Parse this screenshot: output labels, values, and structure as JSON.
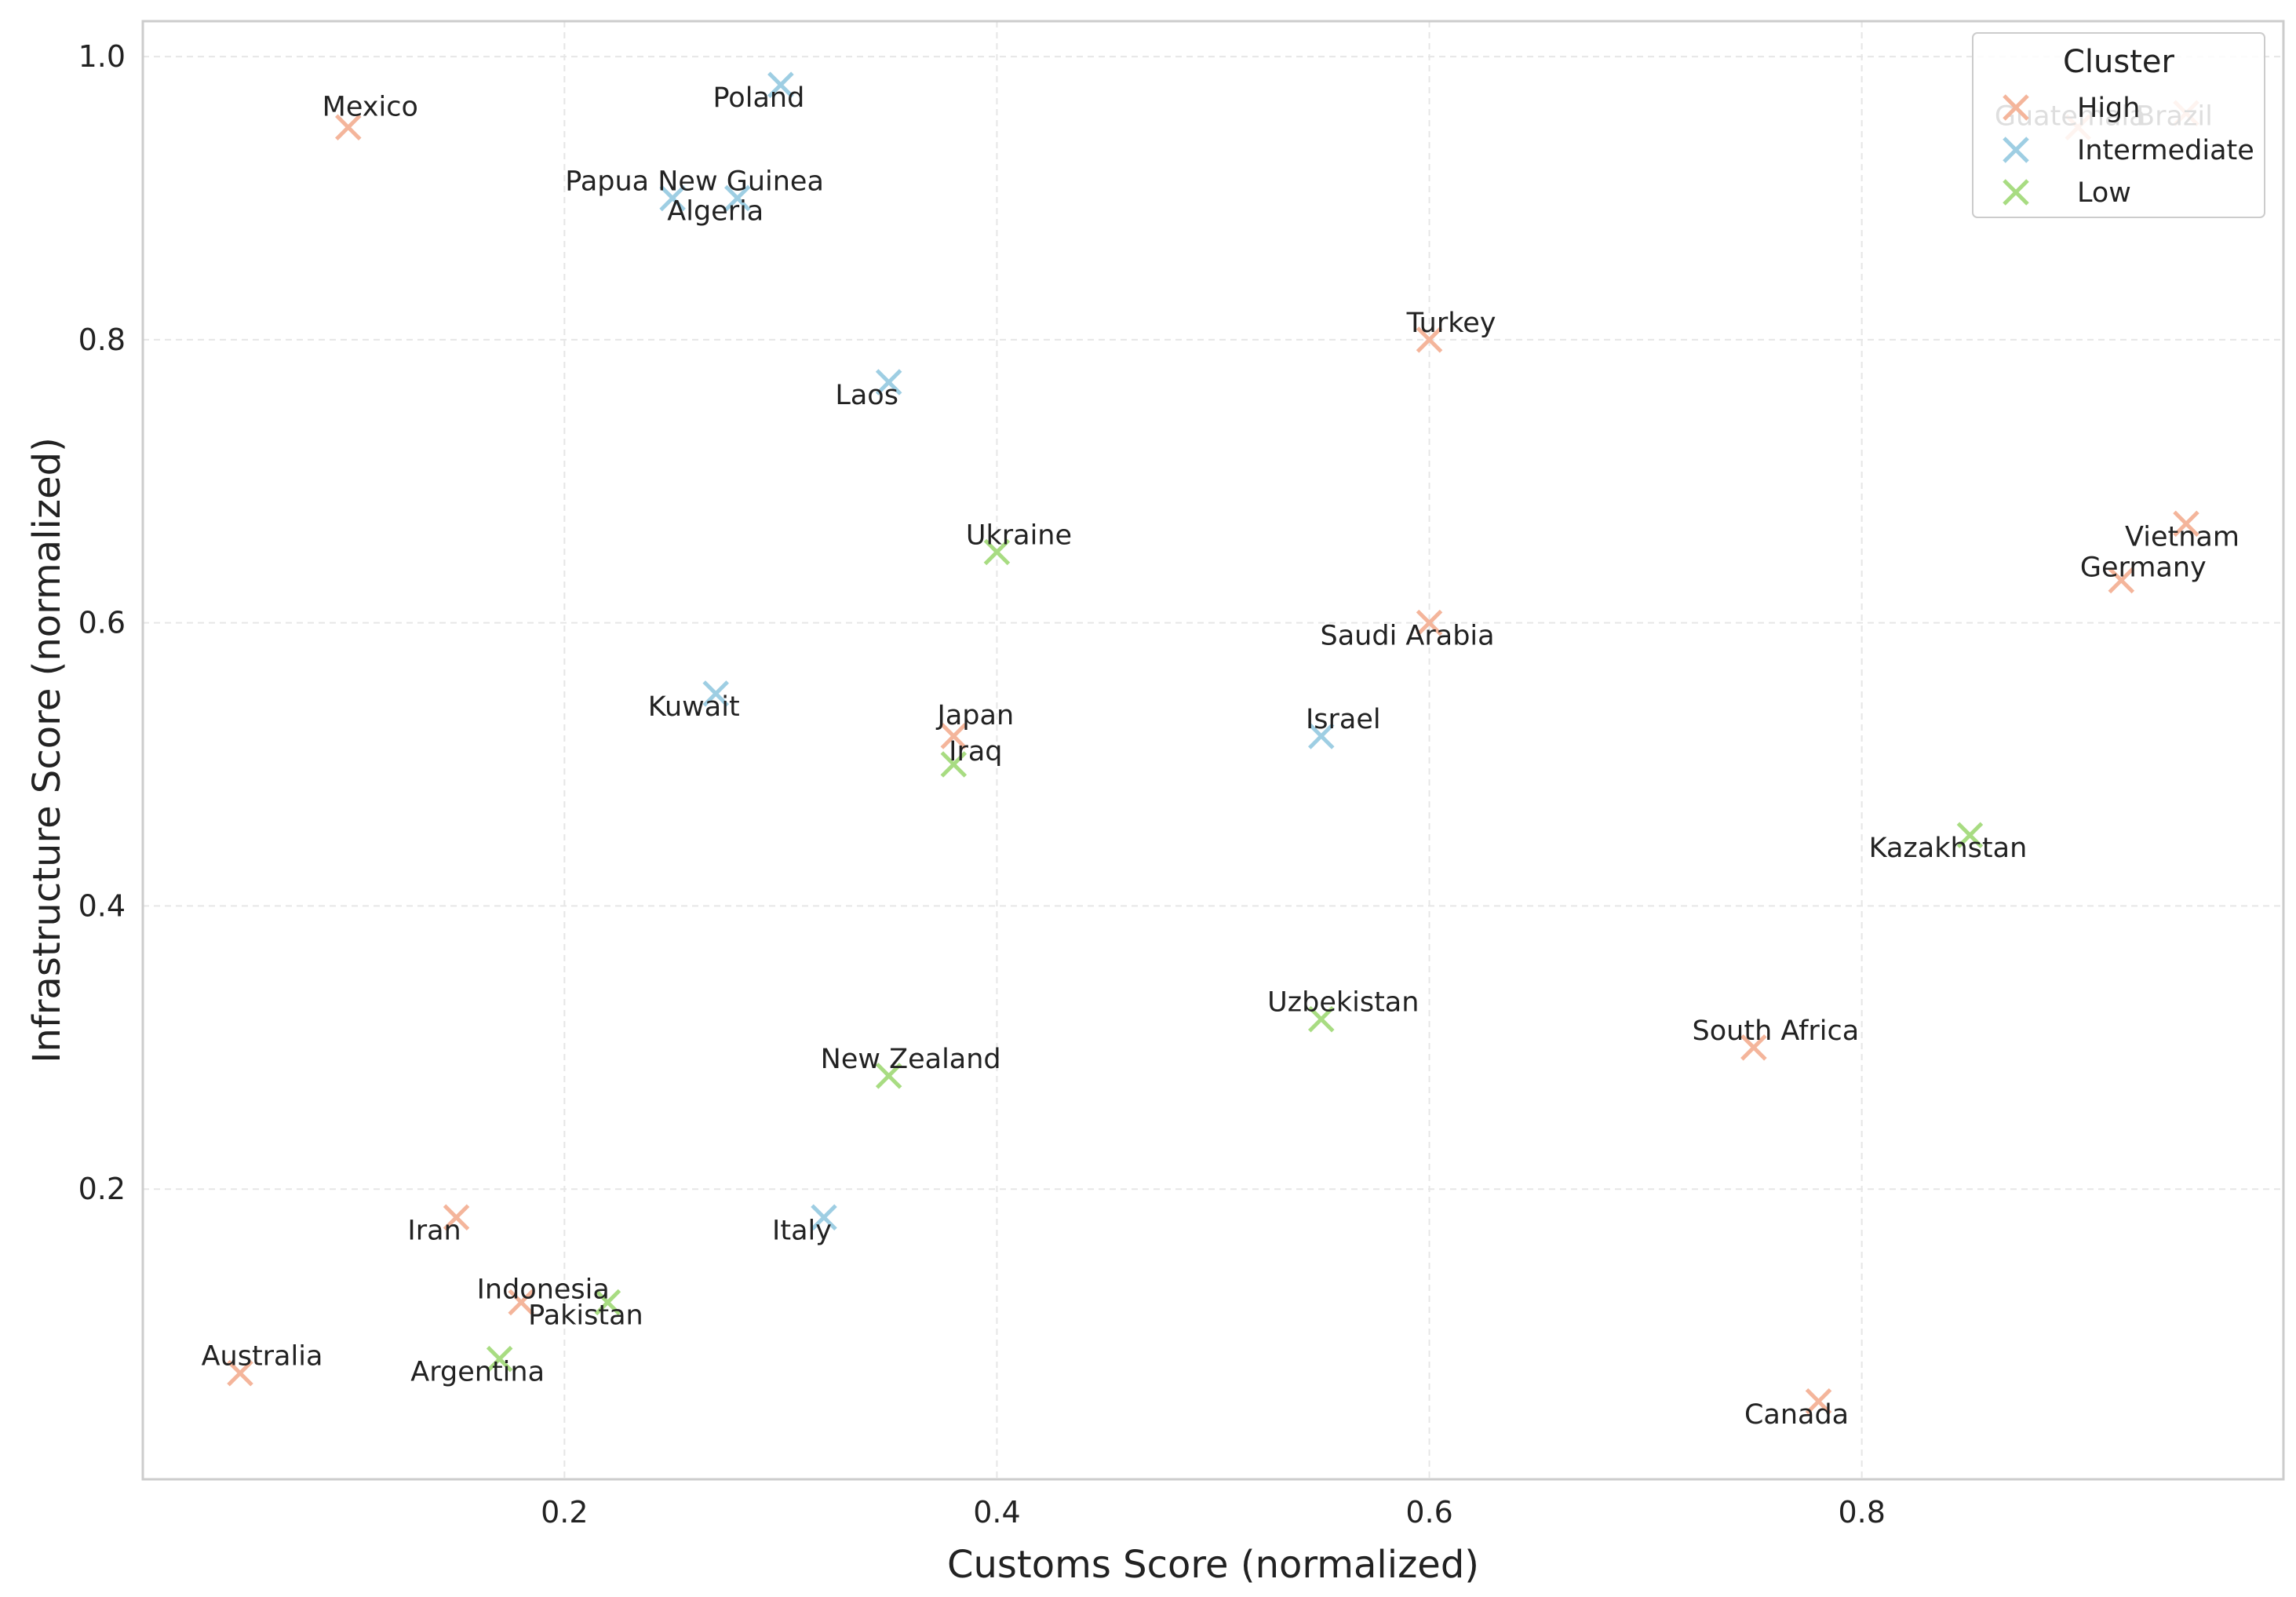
{
  "chart_data": {
    "type": "scatter",
    "title": "",
    "xlabel": "Customs Score (normalized)",
    "ylabel": "Infrastructure Score (normalized)",
    "xlim": [
      0.005,
      0.995
    ],
    "ylim": [
      -0.005,
      1.025
    ],
    "xticks": [
      0.2,
      0.4,
      0.6,
      0.8
    ],
    "yticks": [
      0.2,
      0.4,
      0.6,
      0.8,
      1.0
    ],
    "grid": true,
    "marker": "x",
    "legend": {
      "title": "Cluster",
      "position": "top-right",
      "entries": [
        "High",
        "Intermediate",
        "Low"
      ]
    },
    "colors": {
      "High": "#F4B59B",
      "Intermediate": "#9ECEE3",
      "Low": "#A8DC82"
    },
    "series": [
      {
        "name": "High",
        "points": [
          {
            "label": "Mexico",
            "x": 0.1,
            "y": 0.95
          },
          {
            "label": "Turkey",
            "x": 0.6,
            "y": 0.8
          },
          {
            "label": "Saudi Arabia",
            "x": 0.6,
            "y": 0.6
          },
          {
            "label": "Japan",
            "x": 0.38,
            "y": 0.52
          },
          {
            "label": "Guatemala",
            "x": 0.9,
            "y": 0.95
          },
          {
            "label": "Brazil",
            "x": 0.95,
            "y": 0.96
          },
          {
            "label": "Vietnam",
            "x": 0.95,
            "y": 0.67
          },
          {
            "label": "Germany",
            "x": 0.92,
            "y": 0.63
          },
          {
            "label": "South Africa",
            "x": 0.75,
            "y": 0.3
          },
          {
            "label": "Iran",
            "x": 0.15,
            "y": 0.18
          },
          {
            "label": "Indonesia",
            "x": 0.18,
            "y": 0.12
          },
          {
            "label": "Australia",
            "x": 0.05,
            "y": 0.07
          },
          {
            "label": "Canada",
            "x": 0.78,
            "y": 0.05
          }
        ]
      },
      {
        "name": "Intermediate",
        "points": [
          {
            "label": "Poland",
            "x": 0.3,
            "y": 0.98
          },
          {
            "label": "Papua New Guinea",
            "x": 0.25,
            "y": 0.9
          },
          {
            "label": "Algeria",
            "x": 0.28,
            "y": 0.9
          },
          {
            "label": "Laos",
            "x": 0.35,
            "y": 0.77
          },
          {
            "label": "Kuwait",
            "x": 0.27,
            "y": 0.55
          },
          {
            "label": "Israel",
            "x": 0.55,
            "y": 0.52
          },
          {
            "label": "Italy",
            "x": 0.32,
            "y": 0.18
          }
        ]
      },
      {
        "name": "Low",
        "points": [
          {
            "label": "Ukraine",
            "x": 0.4,
            "y": 0.65
          },
          {
            "label": "Iraq",
            "x": 0.38,
            "y": 0.5
          },
          {
            "label": "Kazakhstan",
            "x": 0.85,
            "y": 0.45
          },
          {
            "label": "Uzbekistan",
            "x": 0.55,
            "y": 0.32
          },
          {
            "label": "New Zealand",
            "x": 0.35,
            "y": 0.28
          },
          {
            "label": "Pakistan",
            "x": 0.22,
            "y": 0.12
          },
          {
            "label": "Argentina",
            "x": 0.17,
            "y": 0.08
          }
        ]
      }
    ]
  }
}
